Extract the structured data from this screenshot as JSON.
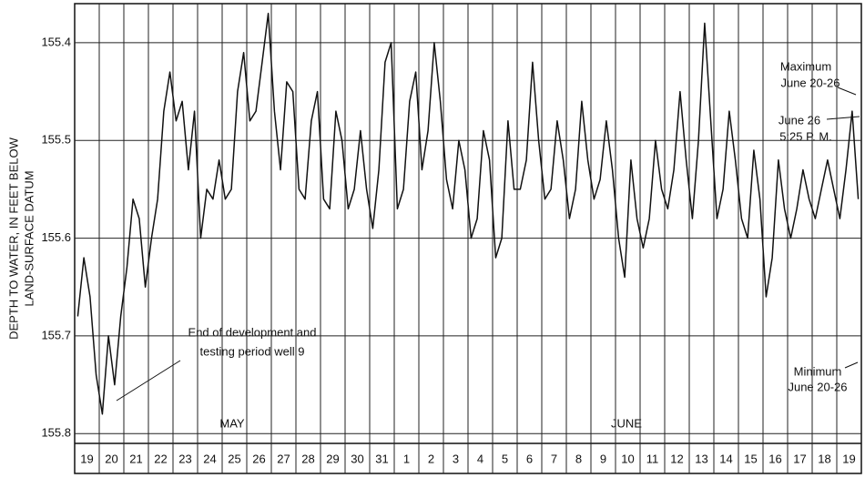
{
  "chart_data": {
    "type": "line",
    "y_label": [
      "DEPTH TO WATER, IN FEET BELOW",
      "LAND-SURFACE DATUM"
    ],
    "categories": [
      "19",
      "20",
      "21",
      "22",
      "23",
      "24",
      "25",
      "26",
      "27",
      "28",
      "29",
      "30",
      "31",
      "1",
      "2",
      "3",
      "4",
      "5",
      "6",
      "7",
      "8",
      "9",
      "10",
      "11",
      "12",
      "13",
      "14",
      "15",
      "16",
      "17",
      "18",
      "19"
    ],
    "values": [
      [
        155.68,
        155.62,
        155.66,
        155.74
      ],
      [
        155.78,
        155.7,
        155.75,
        155.68
      ],
      [
        155.63,
        155.56,
        155.58,
        155.65
      ],
      [
        155.6,
        155.56,
        155.47,
        155.43
      ],
      [
        155.48,
        155.46,
        155.53,
        155.47
      ],
      [
        155.6,
        155.55,
        155.56,
        155.52
      ],
      [
        155.56,
        155.55,
        155.45,
        155.41
      ],
      [
        155.48,
        155.47,
        155.42,
        155.37
      ],
      [
        155.47,
        155.53,
        155.44,
        155.45
      ],
      [
        155.55,
        155.56,
        155.48,
        155.45
      ],
      [
        155.56,
        155.57,
        155.47,
        155.5
      ],
      [
        155.57,
        155.55,
        155.49,
        155.55
      ],
      [
        155.59,
        155.53,
        155.42,
        155.4
      ],
      [
        155.57,
        155.55,
        155.46,
        155.43
      ],
      [
        155.53,
        155.49,
        155.4,
        155.46
      ],
      [
        155.54,
        155.57,
        155.5,
        155.53
      ],
      [
        155.6,
        155.58,
        155.49,
        155.52
      ],
      [
        155.62,
        155.6,
        155.48,
        155.55
      ],
      [
        155.55,
        155.52,
        155.42,
        155.5
      ],
      [
        155.56,
        155.55,
        155.48,
        155.52
      ],
      [
        155.58,
        155.55,
        155.46,
        155.52
      ],
      [
        155.56,
        155.54,
        155.48,
        155.53
      ],
      [
        155.6,
        155.64,
        155.52,
        155.58
      ],
      [
        155.61,
        155.58,
        155.5,
        155.55
      ],
      [
        155.57,
        155.53,
        155.45,
        155.52
      ],
      [
        155.58,
        155.5,
        155.38,
        155.48
      ],
      [
        155.58,
        155.55,
        155.47,
        155.52
      ],
      [
        155.58,
        155.6,
        155.51,
        155.56
      ],
      [
        155.66,
        155.62,
        155.52,
        155.57
      ],
      [
        155.6,
        155.57,
        155.53,
        155.56
      ],
      [
        155.58,
        155.55,
        155.52,
        155.55
      ],
      [
        155.58,
        155.53,
        155.47,
        155.56
      ]
    ],
    "color": "#111111",
    "ylim": [
      155.36,
      155.81
    ],
    "y_inverted": true,
    "yticks": [
      155.4,
      155.5,
      155.6,
      155.7,
      155.8
    ],
    "grid": true,
    "annotations": {
      "development": [
        "End of development and",
        "testing period well 9"
      ],
      "may": "MAY",
      "june": "JUNE",
      "maximum": [
        "Maximum",
        "June 20-26"
      ],
      "june26": [
        "June 26",
        "5:25 P. M."
      ],
      "minimum": [
        "Minimum",
        "June 20-26"
      ]
    }
  }
}
